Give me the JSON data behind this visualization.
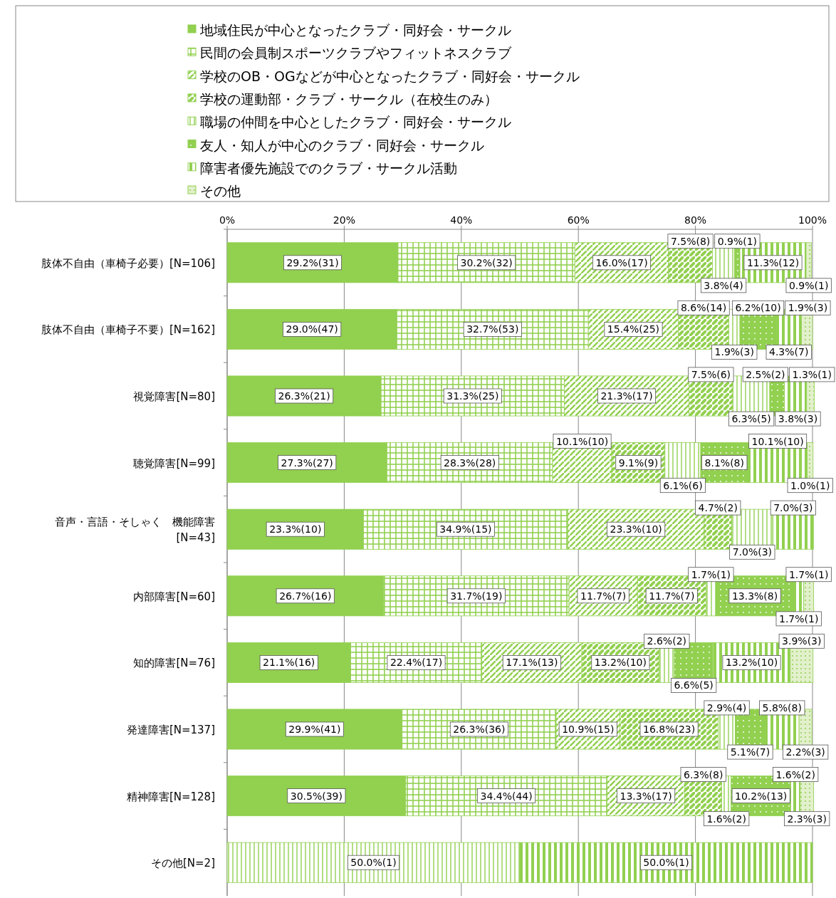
{
  "chart_data": {
    "type": "bar",
    "orientation": "horizontal",
    "stacked": true,
    "legend": "top",
    "grid": "x",
    "categories": [
      "肢体不自由（車椅子必要）[N=106]",
      "肢体不自由（車椅子不要）[N=162]",
      "視覚障害[N=80]",
      "聴覚障害[N=99]",
      "音声・言語・そしゃく　機能障害\n[N=43]",
      "内部障害[N=60]",
      "知的障害[N=76]",
      "発達障害[N=137]",
      "精神障害[N=128]",
      "その他[N=2]"
    ],
    "xlim": [
      0,
      100
    ],
    "xticks": [
      {
        "value": 0,
        "label": "0%"
      },
      {
        "value": 20,
        "label": "20%"
      },
      {
        "value": 40,
        "label": "40%"
      },
      {
        "value": 60,
        "label": "60%"
      },
      {
        "value": 80,
        "label": "80%"
      },
      {
        "value": 100,
        "label": "100%"
      }
    ],
    "series": [
      {
        "name": "地域住民が中心となったクラブ・同好会・サークル",
        "color": "#92d050",
        "values": [
          29.2,
          29.0,
          26.3,
          27.3,
          23.3,
          26.7,
          21.1,
          29.9,
          30.5,
          null
        ],
        "value_labels": [
          "29.2%(31)",
          "29.0%(47)",
          "26.3%(21)",
          "27.3%(27)",
          "23.3%(10)",
          "26.7%(16)",
          "21.1%(16)",
          "29.9%(41)",
          "30.5%(39)",
          null
        ]
      },
      {
        "name": "民間の会員制スポーツクラブやフィットネスクラブ",
        "color": "#92d050",
        "values": [
          30.2,
          32.7,
          31.3,
          28.3,
          34.9,
          31.7,
          22.4,
          26.3,
          34.4,
          null
        ],
        "value_labels": [
          "30.2%(32)",
          "32.7%(53)",
          "31.3%(25)",
          "28.3%(28)",
          "34.9%(15)",
          "31.7%(19)",
          "22.4%(17)",
          "26.3%(36)",
          "34.4%(44)",
          null
        ]
      },
      {
        "name": "学校のOB・OGなどが中心となったクラブ・同好会・サークル",
        "color": "#92d050",
        "values": [
          16.0,
          15.4,
          21.3,
          10.1,
          23.3,
          11.7,
          17.1,
          10.9,
          13.3,
          null
        ],
        "value_labels": [
          "16.0%(17)",
          "15.4%(25)",
          "21.3%(17)",
          "10.1%(10)",
          "23.3%(10)",
          "11.7%(7)",
          "17.1%(13)",
          "10.9%(15)",
          "13.3%(17)",
          null
        ]
      },
      {
        "name": "学校の運動部・クラブ・サークル（在校生のみ）",
        "color": "#92d050",
        "values": [
          7.5,
          8.6,
          7.5,
          9.1,
          4.7,
          11.7,
          13.2,
          16.8,
          6.3,
          null
        ],
        "value_labels": [
          "7.5%(8)",
          "8.6%(14)",
          "7.5%(6)",
          "9.1%(9)",
          "4.7%(2)",
          "11.7%(7)",
          "13.2%(10)",
          "16.8%(23)",
          "6.3%(8)",
          null
        ]
      },
      {
        "name": "職場の仲間を中心としたクラブ・同好会・サークル",
        "color": "#92d050",
        "values": [
          3.8,
          1.9,
          6.3,
          6.1,
          7.0,
          1.7,
          2.6,
          2.9,
          1.6,
          50.0
        ],
        "value_labels": [
          "3.8%(4)",
          "1.9%(3)",
          "6.3%(5)",
          "6.1%(6)",
          "7.0%(3)",
          "1.7%(1)",
          "2.6%(2)",
          "2.9%(4)",
          "1.6%(2)",
          "50.0%(1)"
        ]
      },
      {
        "name": "友人・知人が中心のクラブ・同好会・サークル",
        "color": "#92d050",
        "values": [
          0.9,
          6.2,
          2.5,
          8.1,
          null,
          13.3,
          6.6,
          5.1,
          10.2,
          null
        ],
        "value_labels": [
          "0.9%(1)",
          "6.2%(10)",
          "2.5%(2)",
          "8.1%(8)",
          null,
          "13.3%(8)",
          "6.6%(5)",
          "5.1%(7)",
          "10.2%(13)",
          null
        ]
      },
      {
        "name": "障害者優先施設でのクラブ・サークル活動",
        "color": "#92d050",
        "values": [
          11.3,
          4.3,
          3.8,
          10.1,
          7.0,
          1.7,
          13.2,
          5.8,
          1.6,
          50.0
        ],
        "value_labels": [
          "11.3%(12)",
          "4.3%(7)",
          "3.8%(3)",
          "10.1%(10)",
          "7.0%(3)",
          "1.7%(1)",
          "13.2%(10)",
          "5.8%(8)",
          "1.6%(2)",
          "50.0%(1)"
        ]
      },
      {
        "name": "その他",
        "color": "#92d050",
        "values": [
          0.9,
          1.9,
          1.3,
          1.0,
          null,
          1.7,
          3.9,
          2.2,
          2.3,
          null
        ],
        "value_labels": [
          "0.9%(1)",
          "1.9%(3)",
          "1.3%(1)",
          "1.0%(1)",
          null,
          "1.7%(1)",
          "3.9%(3)",
          "2.2%(3)",
          "2.3%(3)",
          null
        ]
      }
    ]
  }
}
